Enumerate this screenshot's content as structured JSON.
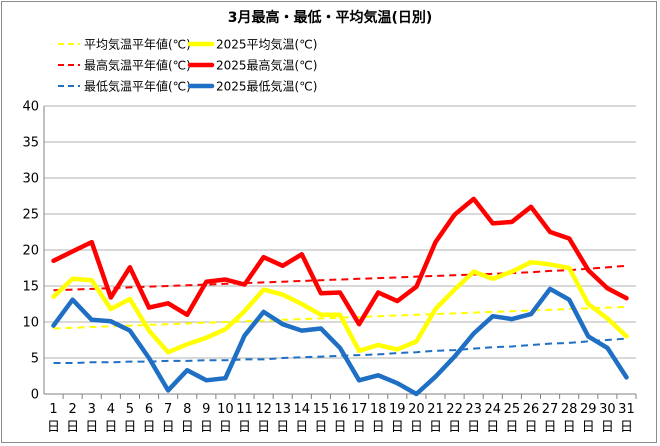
{
  "chart_data": {
    "type": "line",
    "title": "3月最高・最低・平均気温(日別)",
    "xlabel": "",
    "ylabel": "",
    "ylim": [
      0,
      40
    ],
    "y_ticks": [
      0,
      5,
      10,
      15,
      20,
      25,
      30,
      35,
      40
    ],
    "categories": [
      "1",
      "2",
      "3",
      "4",
      "5",
      "6",
      "7",
      "8",
      "9",
      "10",
      "11",
      "12",
      "13",
      "14",
      "15",
      "16",
      "17",
      "18",
      "19",
      "20",
      "21",
      "22",
      "23",
      "24",
      "25",
      "26",
      "27",
      "28",
      "29",
      "30",
      "31"
    ],
    "category_suffix": "日",
    "grid": "horizontal",
    "legend": "top",
    "series": [
      {
        "name": "平均気温平年値(℃)",
        "style": "dashed",
        "color": "#ffff00",
        "values": [
          9.1,
          9.2,
          9.3,
          9.4,
          9.5,
          9.6,
          9.7,
          9.8,
          9.9,
          10.0,
          10.1,
          10.2,
          10.3,
          10.4,
          10.5,
          10.6,
          10.7,
          10.8,
          10.9,
          11.0,
          11.1,
          11.2,
          11.3,
          11.4,
          11.5,
          11.6,
          11.7,
          11.8,
          11.9,
          12.0,
          12.1
        ]
      },
      {
        "name": "2025平均気温(℃)",
        "style": "solid",
        "color": "#ffff00",
        "values": [
          13.5,
          16.0,
          15.8,
          11.8,
          13.2,
          8.8,
          5.8,
          6.9,
          7.8,
          9.0,
          11.5,
          14.5,
          13.8,
          12.5,
          11.0,
          11.0,
          6.0,
          6.8,
          6.2,
          7.3,
          11.8,
          14.5,
          17.0,
          16.0,
          17.0,
          18.3,
          18.0,
          17.5,
          12.5,
          10.5,
          8.0
        ]
      },
      {
        "name": "最高気温平年値(℃)",
        "style": "dashed",
        "color": "#ff0000",
        "values": [
          14.4,
          14.5,
          14.6,
          14.7,
          14.8,
          14.9,
          15.0,
          15.1,
          15.2,
          15.3,
          15.4,
          15.5,
          15.6,
          15.7,
          15.8,
          15.9,
          16.0,
          16.1,
          16.2,
          16.3,
          16.4,
          16.5,
          16.6,
          16.7,
          16.8,
          16.9,
          17.1,
          17.2,
          17.4,
          17.6,
          17.8
        ]
      },
      {
        "name": "2025最高気温(℃)",
        "style": "solid",
        "color": "#ff0000",
        "values": [
          18.5,
          19.8,
          21.1,
          13.4,
          17.6,
          12.0,
          12.6,
          11.0,
          15.6,
          15.9,
          15.2,
          19.0,
          17.8,
          19.4,
          14.0,
          14.1,
          9.7,
          14.1,
          12.9,
          14.9,
          21.1,
          24.9,
          27.1,
          23.7,
          23.9,
          26.0,
          22.5,
          21.6,
          17.2,
          14.7,
          13.3
        ]
      },
      {
        "name": "最低気温平年値(℃)",
        "style": "dashed",
        "color": "#1f6fc4",
        "values": [
          4.3,
          4.3,
          4.4,
          4.4,
          4.5,
          4.5,
          4.6,
          4.6,
          4.7,
          4.7,
          4.8,
          4.8,
          5.0,
          5.1,
          5.2,
          5.3,
          5.4,
          5.5,
          5.7,
          5.8,
          6.0,
          6.1,
          6.3,
          6.5,
          6.6,
          6.8,
          7.0,
          7.1,
          7.3,
          7.5,
          7.7
        ]
      },
      {
        "name": "2025最低気温(℃)",
        "style": "solid",
        "color": "#1f6fc4",
        "values": [
          9.5,
          13.1,
          10.3,
          10.1,
          8.8,
          5.0,
          0.5,
          3.3,
          1.9,
          2.2,
          8.1,
          11.4,
          9.7,
          8.8,
          9.1,
          6.4,
          1.9,
          2.6,
          1.5,
          0.0,
          2.4,
          5.2,
          8.4,
          10.8,
          10.4,
          11.1,
          14.6,
          13.1,
          8.0,
          6.4,
          2.3
        ]
      }
    ]
  }
}
